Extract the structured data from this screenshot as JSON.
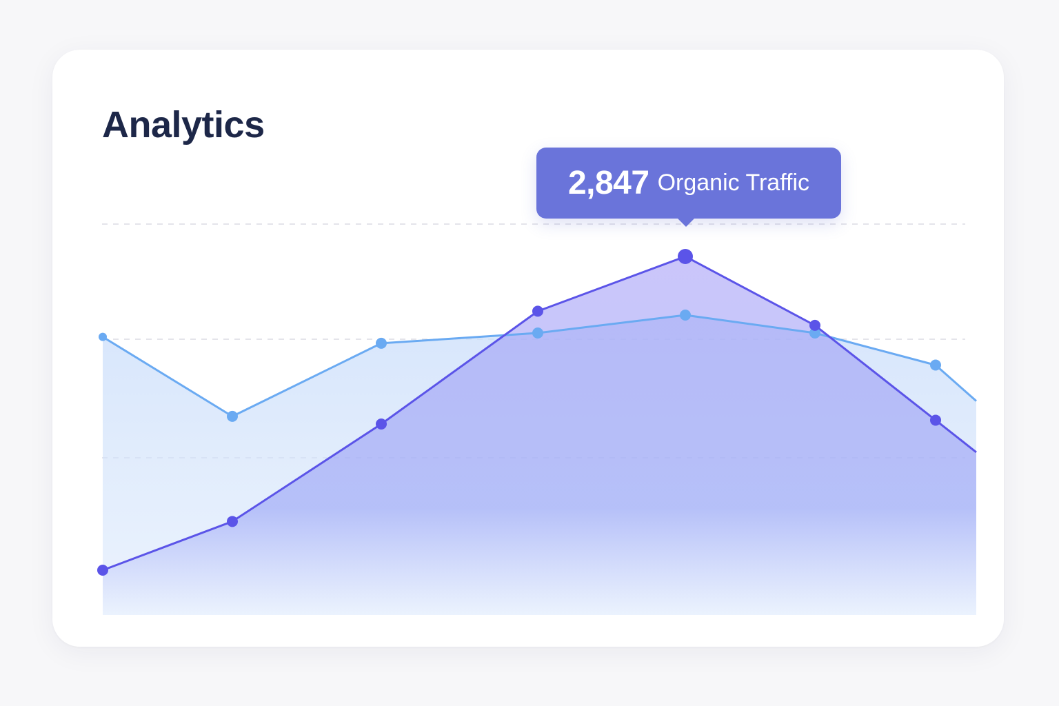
{
  "card": {
    "title": "Analytics"
  },
  "tooltip": {
    "value": "2,847",
    "label": "Organic Traffic"
  },
  "colors": {
    "organic_line": "#5b54e8",
    "organic_fill": "#8f8ff5",
    "secondary_line": "#6aaaf2",
    "secondary_fill": "#cfe2fb",
    "grid": "#dcdce4",
    "tooltip_bg": "#6a74da",
    "title": "#1d2748"
  },
  "chart_data": {
    "type": "area",
    "title": "Analytics",
    "xlabel": "",
    "ylabel": "",
    "x": [
      0,
      1,
      2,
      3,
      4,
      5,
      6,
      7
    ],
    "ylim": [
      0,
      3400
    ],
    "grid": true,
    "series": [
      {
        "name": "Organic Traffic",
        "values": [
          400,
          780,
          1540,
          2420,
          2847,
          2310,
          1570,
          1320
        ]
      },
      {
        "name": "",
        "values": [
          2220,
          1600,
          2170,
          2250,
          2390,
          2250,
          2000,
          1720
        ]
      }
    ],
    "annotations": [
      {
        "series": "Organic Traffic",
        "x": 4,
        "value": 2847,
        "text": "2,847 Organic Traffic"
      }
    ]
  }
}
